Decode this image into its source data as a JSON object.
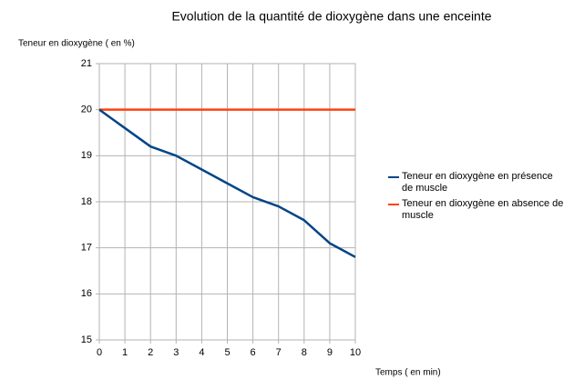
{
  "chart_data": {
    "type": "line",
    "title": "Evolution de la quantité de dioxygène dans une enceinte",
    "y_label": "Teneur en dioxygène ( en %)",
    "x_label": "Temps ( en min)",
    "x": [
      0,
      1,
      2,
      3,
      4,
      5,
      6,
      7,
      8,
      9,
      10
    ],
    "series": [
      {
        "name": "Teneur en dioxygène en présence de muscle",
        "color": "#004586",
        "values": [
          20,
          19.6,
          19.2,
          19.0,
          18.7,
          18.4,
          18.1,
          17.9,
          17.6,
          17.1,
          16.8
        ]
      },
      {
        "name": "Teneur en dioxygène en absence de muscle",
        "color": "#ff420e",
        "values": [
          20,
          20,
          20,
          20,
          20,
          20,
          20,
          20,
          20,
          20,
          20
        ]
      }
    ],
    "xlim": [
      0,
      10
    ],
    "xticks": [
      0,
      1,
      2,
      3,
      4,
      5,
      6,
      7,
      8,
      9,
      10
    ],
    "ylim": [
      15,
      21
    ],
    "yticks": [
      15,
      16,
      17,
      18,
      19,
      20,
      21
    ],
    "grid": true,
    "legend": "right"
  }
}
